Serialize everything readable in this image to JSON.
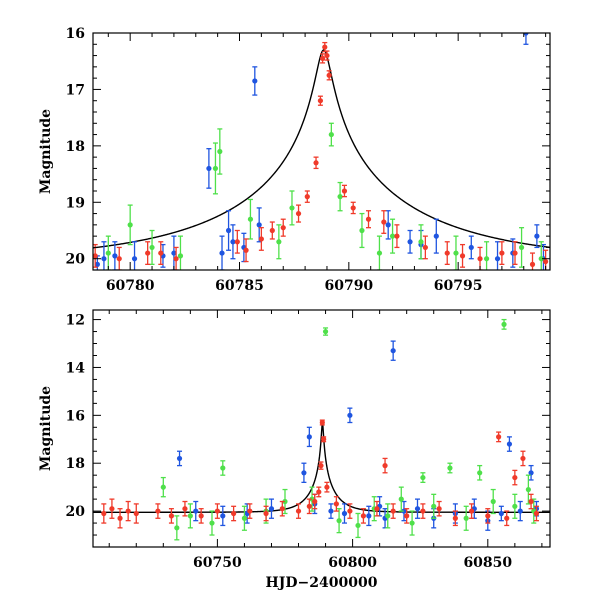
{
  "colors": {
    "blue": "#1f55e0",
    "green": "#4fe04a",
    "red": "#f03a2a",
    "model": "#000000"
  },
  "chart_data": [
    {
      "type": "scatter",
      "panel": "top",
      "title": "",
      "xlabel": "",
      "ylabel": "Magnitude",
      "xlim": [
        60778.3,
        60799.2
      ],
      "ylim": [
        20.2,
        16.0
      ],
      "y_inverted": true,
      "xticks": [
        60780,
        60785,
        60790,
        60795
      ],
      "xtick_labels": [
        "60780",
        "60785",
        "60790",
        "60795"
      ],
      "yticks": [
        16,
        17,
        18,
        19,
        20
      ],
      "ytick_labels": [
        "16",
        "17",
        "18",
        "19",
        "20"
      ],
      "model_curve": {
        "peak_hjd": 60788.85,
        "peak_mag": 16.3,
        "baseline_mag": 20.05,
        "description_shape": "single-lens microlensing peak"
      },
      "series": [
        {
          "color": "blue",
          "x": [
            60778.5,
            60778.8,
            60779.3,
            60780.2,
            60781.5,
            60782.0,
            60783.6,
            60784.2,
            60784.5,
            60784.7,
            60785.2,
            60785.7,
            60785.9,
            60791.8,
            60792.8,
            60793.3,
            60794.0,
            60795.6,
            60796.8,
            60797.5,
            60798.1,
            60798.6,
            60798.9
          ],
          "y": [
            20.1,
            20.0,
            19.95,
            20.0,
            19.95,
            19.9,
            18.4,
            19.9,
            19.5,
            19.7,
            19.8,
            16.85,
            19.4,
            19.4,
            19.7,
            19.75,
            19.6,
            19.8,
            20.0,
            19.9,
            16.0,
            19.6,
            20.0
          ],
          "err": [
            0.15,
            0.3,
            0.25,
            0.3,
            0.2,
            0.3,
            0.35,
            0.3,
            0.35,
            0.3,
            0.25,
            0.25,
            0.3,
            0.25,
            0.2,
            0.25,
            0.3,
            0.2,
            0.3,
            0.25,
            0.2,
            0.2,
            0.25
          ]
        },
        {
          "color": "green",
          "x": [
            60779.0,
            60780.0,
            60781.0,
            60782.3,
            60783.9,
            60784.1,
            60785.5,
            60786.8,
            60787.4,
            60789.2,
            60789.6,
            60790.6,
            60791.4,
            60792.0,
            60793.3,
            60794.9,
            60796.3,
            60797.9,
            60798.8
          ],
          "y": [
            19.9,
            19.4,
            19.8,
            19.95,
            18.4,
            18.1,
            19.3,
            19.7,
            19.1,
            17.8,
            18.9,
            19.5,
            19.9,
            19.6,
            19.7,
            19.9,
            20.0,
            19.8,
            20.0
          ],
          "err": [
            0.3,
            0.35,
            0.3,
            0.35,
            0.45,
            0.4,
            0.35,
            0.3,
            0.3,
            0.2,
            0.25,
            0.3,
            0.3,
            0.3,
            0.3,
            0.3,
            0.3,
            0.35,
            0.3
          ]
        },
        {
          "color": "red",
          "x": [
            60778.4,
            60779.5,
            60780.8,
            60781.4,
            60782.1,
            60784.9,
            60785.3,
            60786.0,
            60786.5,
            60787.0,
            60787.7,
            60788.1,
            60788.5,
            60788.7,
            60788.8,
            60788.9,
            60789.0,
            60789.1,
            60789.8,
            60790.2,
            60790.9,
            60791.6,
            60792.2,
            60793.5,
            60794.5,
            60795.2,
            60796.0,
            60797.0,
            60797.6,
            60798.4,
            60799.0
          ],
          "y": [
            19.95,
            20.0,
            19.9,
            19.9,
            20.0,
            19.7,
            19.85,
            19.65,
            19.5,
            19.45,
            19.2,
            18.9,
            18.3,
            17.2,
            16.45,
            16.25,
            16.4,
            16.75,
            18.8,
            19.1,
            19.3,
            19.35,
            19.6,
            19.8,
            19.9,
            19.95,
            20.0,
            19.9,
            19.9,
            20.1,
            20.05
          ],
          "err": [
            0.2,
            0.2,
            0.2,
            0.2,
            0.2,
            0.2,
            0.2,
            0.2,
            0.15,
            0.15,
            0.15,
            0.1,
            0.1,
            0.08,
            0.08,
            0.08,
            0.08,
            0.08,
            0.1,
            0.1,
            0.15,
            0.2,
            0.2,
            0.2,
            0.2,
            0.2,
            0.2,
            0.2,
            0.2,
            0.2,
            0.2
          ]
        }
      ]
    },
    {
      "type": "scatter",
      "panel": "bottom",
      "title": "",
      "xlabel": "HJD−2400000",
      "ylabel": "Magnitude",
      "xlim": [
        60704,
        60873
      ],
      "ylim": [
        21.5,
        11.6
      ],
      "y_inverted": true,
      "xticks": [
        60750,
        60800,
        60850
      ],
      "xtick_labels": [
        "60750",
        "60800",
        "60850"
      ],
      "yticks": [
        12,
        14,
        16,
        18,
        20
      ],
      "ytick_labels": [
        "12",
        "14",
        "16",
        "18",
        "20"
      ],
      "model_curve": {
        "peak_hjd": 60788.85,
        "peak_mag": 16.3,
        "baseline_mag": 20.05
      },
      "series": [
        {
          "color": "blue",
          "x": [
            60736,
            60742,
            60752,
            60761,
            60770,
            60782,
            60784,
            60786,
            60792,
            60797,
            60799,
            60806,
            60810,
            60812,
            60815,
            60819,
            60824,
            60830,
            60838,
            60845,
            60850,
            60855,
            60858,
            60862,
            60866,
            60868
          ],
          "y": [
            17.8,
            20.0,
            20.2,
            20.1,
            19.9,
            18.4,
            16.9,
            19.7,
            20.0,
            20.1,
            16.0,
            20.2,
            19.8,
            20.3,
            13.3,
            20.0,
            19.9,
            20.3,
            20.1,
            19.9,
            20.4,
            20.1,
            17.2,
            20.0,
            18.4,
            19.9
          ],
          "err": [
            0.3,
            0.4,
            0.4,
            0.4,
            0.4,
            0.4,
            0.4,
            0.4,
            0.3,
            0.4,
            0.3,
            0.4,
            0.4,
            0.4,
            0.4,
            0.4,
            0.4,
            0.4,
            0.4,
            0.4,
            0.4,
            0.3,
            0.3,
            0.4,
            0.3,
            0.3
          ]
        },
        {
          "color": "green",
          "x": [
            60730,
            60735,
            60740,
            60748,
            60752,
            60760,
            60768,
            60775,
            60785,
            60790,
            60795,
            60802,
            60808,
            60813,
            60818,
            60822,
            60826,
            60830,
            60836,
            60842,
            60847,
            60852,
            60856,
            60860,
            60865,
            60867
          ],
          "y": [
            19.0,
            20.7,
            20.2,
            20.5,
            18.2,
            20.3,
            20.0,
            19.6,
            19.5,
            12.5,
            20.4,
            20.6,
            19.9,
            20.2,
            19.5,
            20.5,
            18.6,
            19.8,
            18.2,
            20.3,
            18.4,
            19.6,
            12.2,
            19.8,
            19.1,
            20.0
          ],
          "err": [
            0.4,
            0.5,
            0.5,
            0.5,
            0.3,
            0.5,
            0.5,
            0.5,
            0.5,
            0.15,
            0.5,
            0.5,
            0.5,
            0.5,
            0.5,
            0.5,
            0.2,
            0.5,
            0.2,
            0.5,
            0.3,
            0.5,
            0.2,
            0.5,
            0.6,
            0.5
          ]
        },
        {
          "color": "red",
          "x": [
            60708,
            60711,
            60714,
            60717,
            60720,
            60728,
            60733,
            60738,
            60744,
            60750,
            60756,
            60762,
            60768,
            60774,
            60780,
            60784,
            60786,
            60787.5,
            60788.3,
            60788.8,
            60789.3,
            60790.5,
            60794,
            60799,
            60804,
            60809,
            60812,
            60815,
            60820,
            60826,
            60832,
            60838,
            60844,
            60850,
            60854,
            60857,
            60860,
            60863,
            60866,
            60868
          ],
          "y": [
            20.1,
            19.9,
            20.3,
            20.0,
            20.1,
            20.0,
            20.2,
            19.9,
            20.2,
            20.0,
            20.1,
            20.0,
            20.1,
            19.9,
            20.0,
            19.8,
            19.6,
            19.2,
            18.1,
            16.3,
            17.0,
            19.0,
            19.7,
            20.0,
            20.2,
            19.9,
            18.1,
            20.0,
            20.2,
            20.0,
            19.9,
            20.3,
            20.0,
            20.2,
            16.9,
            20.3,
            18.6,
            17.8,
            19.6,
            20.1
          ],
          "err": [
            0.4,
            0.4,
            0.4,
            0.4,
            0.4,
            0.3,
            0.3,
            0.3,
            0.3,
            0.3,
            0.3,
            0.3,
            0.3,
            0.3,
            0.3,
            0.3,
            0.3,
            0.2,
            0.15,
            0.1,
            0.1,
            0.2,
            0.3,
            0.3,
            0.3,
            0.3,
            0.3,
            0.3,
            0.3,
            0.3,
            0.3,
            0.3,
            0.3,
            0.3,
            0.2,
            0.3,
            0.3,
            0.3,
            0.3,
            0.3
          ]
        }
      ]
    }
  ]
}
